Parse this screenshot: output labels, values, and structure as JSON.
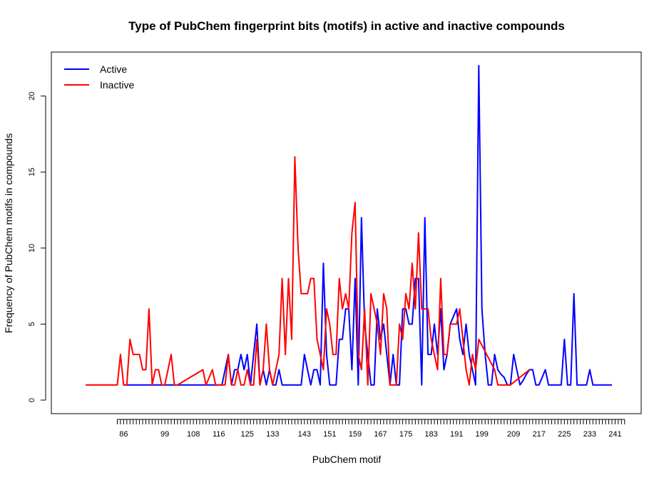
{
  "chart_data": {
    "type": "line",
    "title": "Type of PubChem fingerprint bits (motifs) in active and inactive compounds",
    "xlabel": "PubChem motif",
    "ylabel": "Frequency of PubChem motifs in compounds",
    "xlim": [
      72,
      252
    ],
    "ylim": [
      0,
      22
    ],
    "yticks": [
      0,
      5,
      10,
      15,
      20
    ],
    "xtick_labels": [
      86,
      99,
      108,
      116,
      125,
      133,
      143,
      151,
      159,
      167,
      175,
      183,
      191,
      199,
      209,
      217,
      225,
      233,
      241
    ],
    "xtick_unlabeled": [
      84,
      85,
      87,
      88,
      89,
      90,
      91,
      92,
      93,
      94,
      95,
      96,
      97,
      98,
      100,
      101,
      102,
      103,
      104,
      105,
      106,
      107,
      109,
      110,
      111,
      112,
      113,
      114,
      115,
      117,
      118,
      119,
      120,
      121,
      122,
      123,
      124,
      126,
      127,
      128,
      129,
      130,
      131,
      132,
      134,
      135,
      136,
      137,
      138,
      139,
      140,
      141,
      142,
      144,
      145,
      146,
      147,
      148,
      149,
      150,
      152,
      153,
      154,
      155,
      156,
      157,
      158,
      160,
      161,
      162,
      163,
      164,
      165,
      166,
      168,
      169,
      170,
      171,
      172,
      173,
      174,
      176,
      177,
      178,
      179,
      180,
      181,
      182,
      184,
      185,
      186,
      187,
      188,
      189,
      190,
      192,
      193,
      194,
      195,
      196,
      197,
      198,
      200,
      201,
      202,
      203,
      204,
      205,
      206,
      207,
      208,
      210,
      211,
      212,
      213,
      214,
      215,
      216,
      218,
      219,
      220,
      221,
      222,
      223,
      224,
      226,
      227,
      228,
      229,
      230,
      231,
      232,
      234,
      235,
      236,
      237,
      238,
      239,
      240,
      242,
      243,
      244
    ],
    "legend_position": "top-left",
    "series": [
      {
        "name": "Active",
        "color": "#0000ff",
        "points": [
          [
            86,
            1
          ],
          [
            99,
            1
          ],
          [
            116,
            1
          ],
          [
            117,
            1
          ],
          [
            118,
            2
          ],
          [
            119,
            3
          ],
          [
            120,
            1
          ],
          [
            121,
            2
          ],
          [
            122,
            2
          ],
          [
            123,
            3
          ],
          [
            124,
            2
          ],
          [
            125,
            3
          ],
          [
            126,
            1
          ],
          [
            127,
            3
          ],
          [
            128,
            5
          ],
          [
            129,
            1
          ],
          [
            130,
            2
          ],
          [
            131,
            1
          ],
          [
            132,
            2
          ],
          [
            133,
            1
          ],
          [
            134,
            1
          ],
          [
            135,
            2
          ],
          [
            136,
            1
          ],
          [
            137,
            1
          ],
          [
            138,
            1
          ],
          [
            139,
            1
          ],
          [
            140,
            1
          ],
          [
            141,
            1
          ],
          [
            142,
            1
          ],
          [
            143,
            3
          ],
          [
            144,
            2
          ],
          [
            145,
            1
          ],
          [
            146,
            2
          ],
          [
            147,
            2
          ],
          [
            148,
            1
          ],
          [
            149,
            9
          ],
          [
            150,
            3
          ],
          [
            151,
            1
          ],
          [
            152,
            1
          ],
          [
            153,
            1
          ],
          [
            154,
            4
          ],
          [
            155,
            4
          ],
          [
            156,
            6
          ],
          [
            157,
            6
          ],
          [
            158,
            2
          ],
          [
            159,
            8
          ],
          [
            160,
            1
          ],
          [
            161,
            12
          ],
          [
            162,
            5
          ],
          [
            163,
            3
          ],
          [
            164,
            1
          ],
          [
            165,
            1
          ],
          [
            166,
            6
          ],
          [
            167,
            4
          ],
          [
            168,
            5
          ],
          [
            169,
            3
          ],
          [
            170,
            1
          ],
          [
            171,
            3
          ],
          [
            172,
            1
          ],
          [
            173,
            1
          ],
          [
            174,
            6
          ],
          [
            175,
            6
          ],
          [
            176,
            5
          ],
          [
            177,
            5
          ],
          [
            178,
            8
          ],
          [
            179,
            8
          ],
          [
            180,
            1
          ],
          [
            181,
            12
          ],
          [
            182,
            3
          ],
          [
            183,
            3
          ],
          [
            184,
            5
          ],
          [
            185,
            3
          ],
          [
            186,
            6
          ],
          [
            187,
            2
          ],
          [
            188,
            3
          ],
          [
            189,
            5
          ],
          [
            190,
            5.5
          ],
          [
            191,
            6
          ],
          [
            192,
            4
          ],
          [
            193,
            3
          ],
          [
            194,
            5
          ],
          [
            195,
            3
          ],
          [
            196,
            2
          ],
          [
            197,
            1
          ],
          [
            198,
            22
          ],
          [
            199,
            6
          ],
          [
            200,
            3
          ],
          [
            201,
            1
          ],
          [
            202,
            1
          ],
          [
            203,
            3
          ],
          [
            204,
            2
          ],
          [
            205,
            1.7
          ],
          [
            206,
            1.5
          ],
          [
            207,
            1
          ],
          [
            208,
            1
          ],
          [
            209,
            3
          ],
          [
            210,
            2
          ],
          [
            211,
            1
          ],
          [
            212,
            1.3
          ],
          [
            213,
            1.7
          ],
          [
            214,
            2
          ],
          [
            215,
            2
          ],
          [
            216,
            1
          ],
          [
            217,
            1
          ],
          [
            218,
            1.5
          ],
          [
            219,
            2
          ],
          [
            220,
            1
          ],
          [
            221,
            1
          ],
          [
            222,
            1
          ],
          [
            223,
            1
          ],
          [
            224,
            1
          ],
          [
            225,
            4
          ],
          [
            226,
            1
          ],
          [
            227,
            1
          ],
          [
            228,
            7
          ],
          [
            229,
            1
          ],
          [
            230,
            1
          ],
          [
            231,
            1
          ],
          [
            232,
            1
          ],
          [
            233,
            2
          ],
          [
            234,
            1
          ],
          [
            235,
            1
          ],
          [
            236,
            1
          ],
          [
            237,
            1
          ],
          [
            238,
            1
          ],
          [
            239,
            1
          ],
          [
            240,
            1
          ]
        ]
      },
      {
        "name": "Inactive",
        "color": "#ff0000",
        "points": [
          [
            74,
            1
          ],
          [
            84,
            1
          ],
          [
            85,
            3
          ],
          [
            86,
            1
          ],
          [
            87,
            1
          ],
          [
            88,
            4
          ],
          [
            89,
            3
          ],
          [
            90,
            3
          ],
          [
            91,
            3
          ],
          [
            92,
            2
          ],
          [
            93,
            2
          ],
          [
            94,
            6
          ],
          [
            95,
            1
          ],
          [
            96,
            2
          ],
          [
            97,
            2
          ],
          [
            98,
            1
          ],
          [
            99,
            1
          ],
          [
            101,
            3
          ],
          [
            102,
            1
          ],
          [
            103,
            1
          ],
          [
            111,
            2
          ],
          [
            112,
            1
          ],
          [
            114,
            2
          ],
          [
            115,
            1
          ],
          [
            116,
            1
          ],
          [
            117,
            1
          ],
          [
            118,
            1
          ],
          [
            119,
            3
          ],
          [
            120,
            1
          ],
          [
            121,
            1
          ],
          [
            122,
            2
          ],
          [
            123,
            1
          ],
          [
            124,
            1
          ],
          [
            125,
            2
          ],
          [
            126,
            1
          ],
          [
            127,
            1
          ],
          [
            128,
            4
          ],
          [
            129,
            1
          ],
          [
            130,
            2
          ],
          [
            131,
            5
          ],
          [
            132,
            2
          ],
          [
            133,
            1
          ],
          [
            134,
            2
          ],
          [
            135,
            3
          ],
          [
            136,
            8
          ],
          [
            137,
            3
          ],
          [
            138,
            8
          ],
          [
            139,
            4
          ],
          [
            140,
            16
          ],
          [
            141,
            10
          ],
          [
            142,
            7
          ],
          [
            143,
            7
          ],
          [
            144,
            7
          ],
          [
            145,
            8
          ],
          [
            146,
            8
          ],
          [
            147,
            4
          ],
          [
            148,
            3
          ],
          [
            149,
            2
          ],
          [
            150,
            6
          ],
          [
            151,
            5
          ],
          [
            152,
            3
          ],
          [
            153,
            3
          ],
          [
            154,
            8
          ],
          [
            155,
            6
          ],
          [
            156,
            7
          ],
          [
            157,
            6
          ],
          [
            158,
            11
          ],
          [
            159,
            13
          ],
          [
            160,
            3
          ],
          [
            161,
            2
          ],
          [
            162,
            6
          ],
          [
            163,
            1
          ],
          [
            164,
            7
          ],
          [
            165,
            6
          ],
          [
            166,
            5
          ],
          [
            167,
            3
          ],
          [
            168,
            7
          ],
          [
            169,
            6
          ],
          [
            170,
            1
          ],
          [
            171,
            1
          ],
          [
            172,
            1
          ],
          [
            173,
            5
          ],
          [
            174,
            4
          ],
          [
            175,
            7
          ],
          [
            176,
            6
          ],
          [
            177,
            9
          ],
          [
            178,
            6
          ],
          [
            179,
            11
          ],
          [
            180,
            6
          ],
          [
            181,
            6
          ],
          [
            182,
            6
          ],
          [
            183,
            4
          ],
          [
            184,
            3
          ],
          [
            185,
            2
          ],
          [
            186,
            8
          ],
          [
            187,
            3
          ],
          [
            188,
            3
          ],
          [
            189,
            5
          ],
          [
            190,
            5
          ],
          [
            191,
            5
          ],
          [
            192,
            6
          ],
          [
            193,
            4
          ],
          [
            194,
            2
          ],
          [
            195,
            1
          ],
          [
            196,
            3
          ],
          [
            197,
            2
          ],
          [
            198,
            4
          ],
          [
            203,
            2
          ],
          [
            204,
            1
          ],
          [
            205,
            1
          ],
          [
            206,
            1
          ],
          [
            207,
            1
          ],
          [
            208,
            1
          ],
          [
            214,
            2
          ]
        ]
      }
    ]
  }
}
